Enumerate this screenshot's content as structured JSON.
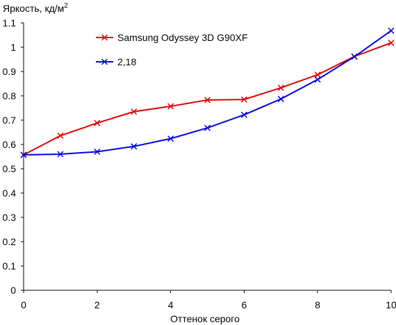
{
  "chart_data": {
    "type": "line",
    "ylabel": "Яркость, кд/м",
    "ylabel_superscript": "2",
    "xlabel": "Оттенок серого",
    "xlim": [
      0,
      10
    ],
    "ylim": [
      0,
      1.1
    ],
    "x_ticks": [
      0,
      2,
      4,
      6,
      8,
      10
    ],
    "y_ticks": [
      0,
      0.1,
      0.2,
      0.3,
      0.4,
      0.5,
      0.6,
      0.7,
      0.8,
      0.9,
      1,
      1.1
    ],
    "grid": false,
    "legend_position": "top-center",
    "x": [
      0,
      1,
      2,
      3,
      4,
      5,
      6,
      7,
      8,
      9,
      10
    ],
    "series": [
      {
        "name": "Samsung Odyssey 3D G90XF",
        "color": "#e00000",
        "marker": "x",
        "values": [
          0.557,
          0.636,
          0.688,
          0.735,
          0.757,
          0.783,
          0.785,
          0.833,
          0.887,
          0.962,
          1.018
        ]
      },
      {
        "name": "2,18",
        "color": "#0000e0",
        "marker": "x",
        "values": [
          0.557,
          0.56,
          0.57,
          0.592,
          0.624,
          0.668,
          0.722,
          0.787,
          0.867,
          0.961,
          1.068
        ]
      }
    ]
  }
}
